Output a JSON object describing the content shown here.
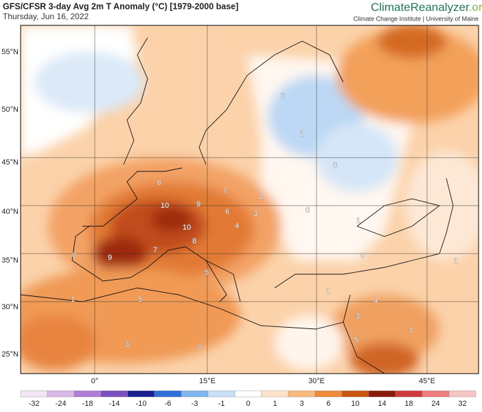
{
  "header": {
    "title": "GFS/CFSR 3-day Avg 2m T Anomaly (°C) [1979-2000 base]",
    "date": "Thursday, Jun 16, 2022",
    "logo_main": "ClimateReanalyzer",
    "logo_suffix": ".org",
    "tagline": "Climate Change Institute | University of Maine"
  },
  "map": {
    "lat_labels": [
      "55°N",
      "50°N",
      "45°N",
      "40°N",
      "35°N",
      "30°N",
      "25°N"
    ],
    "lon_labels": [
      "0°",
      "15°E",
      "30°E",
      "45°E"
    ],
    "contour_labels": [
      "10",
      "9",
      "7",
      "6",
      "10",
      "8",
      "7",
      "9",
      "5",
      "5",
      "3",
      "6",
      "4",
      "2",
      "3",
      "0",
      "0",
      "2",
      "1",
      "1",
      "0",
      "1",
      "4",
      "3",
      "3",
      "5",
      "1",
      "0",
      "1",
      "0"
    ]
  },
  "colorbar": {
    "labels": [
      "-32",
      "-24",
      "-18",
      "-14",
      "-10",
      "-6",
      "-3",
      "-1",
      "0",
      "1",
      "3",
      "6",
      "10",
      "14",
      "18",
      "24",
      "32"
    ],
    "colors": [
      "#f2e6f4",
      "#d7b8e6",
      "#b07ed6",
      "#7a4fc0",
      "#1a1f8f",
      "#2f6fd8",
      "#7fb6f0",
      "#c9e0f8",
      "#ffffff",
      "#fde3c8",
      "#f9b87c",
      "#ef8a3a",
      "#c9560f",
      "#8a1a0a",
      "#d13a3a",
      "#ee7f7f",
      "#f7c4c4"
    ]
  }
}
